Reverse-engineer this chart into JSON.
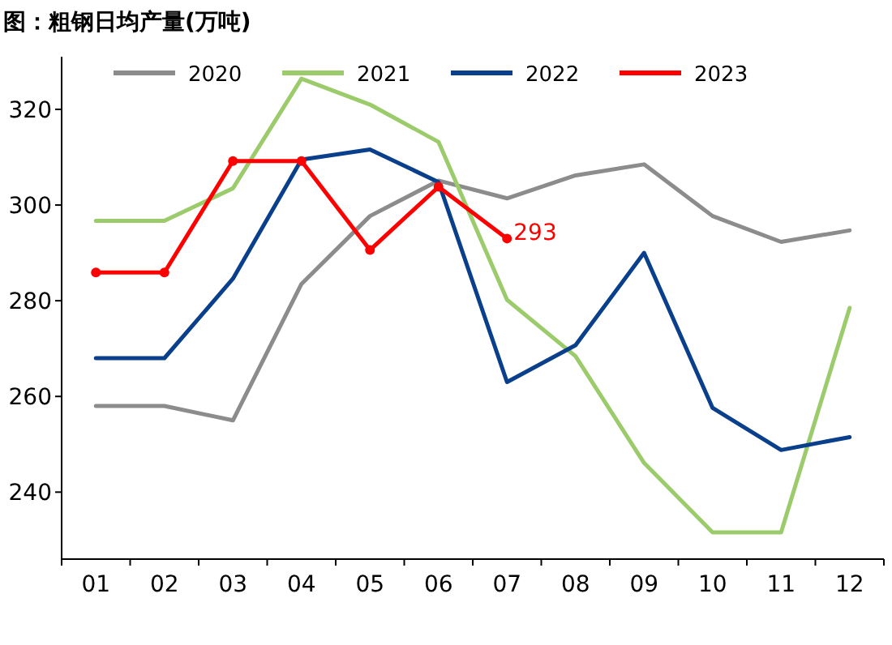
{
  "chart_data": {
    "type": "line",
    "title": "图：粗钢日均产量(万吨)",
    "categories": [
      "01",
      "02",
      "03",
      "04",
      "05",
      "06",
      "07",
      "08",
      "09",
      "10",
      "11",
      "12"
    ],
    "series": [
      {
        "name": "2020",
        "color": "#8c8c8c",
        "marker": "none",
        "values": [
          258,
          258,
          255,
          283.5,
          297.7,
          305.1,
          301.4,
          306.2,
          308.5,
          297.7,
          292.3,
          294.7
        ]
      },
      {
        "name": "2021",
        "color": "#9bcb6b",
        "marker": "none",
        "values": [
          296.7,
          296.7,
          303.5,
          326.4,
          321,
          313.2,
          280.2,
          268.4,
          246.1,
          231.6,
          231.6,
          278.5
        ]
      },
      {
        "name": "2022",
        "color": "#0a3f8c",
        "marker": "none",
        "values": [
          268,
          268,
          284.6,
          309.5,
          311.6,
          304.8,
          263,
          270.7,
          290,
          257.6,
          248.8,
          251.5
        ]
      },
      {
        "name": "2023",
        "color": "#ff0000",
        "marker": "circle",
        "values": [
          285.9,
          285.9,
          309.2,
          309.2,
          290.6,
          303.8,
          293,
          null,
          null,
          null,
          null,
          null
        ],
        "value_labels": [
          null,
          null,
          null,
          null,
          null,
          null,
          "293",
          null,
          null,
          null,
          null,
          null
        ]
      }
    ],
    "ylim": [
      226,
      331
    ],
    "yticks": [
      240,
      260,
      280,
      300,
      320
    ],
    "grid": false,
    "legend": "top",
    "line_style": "solid"
  }
}
